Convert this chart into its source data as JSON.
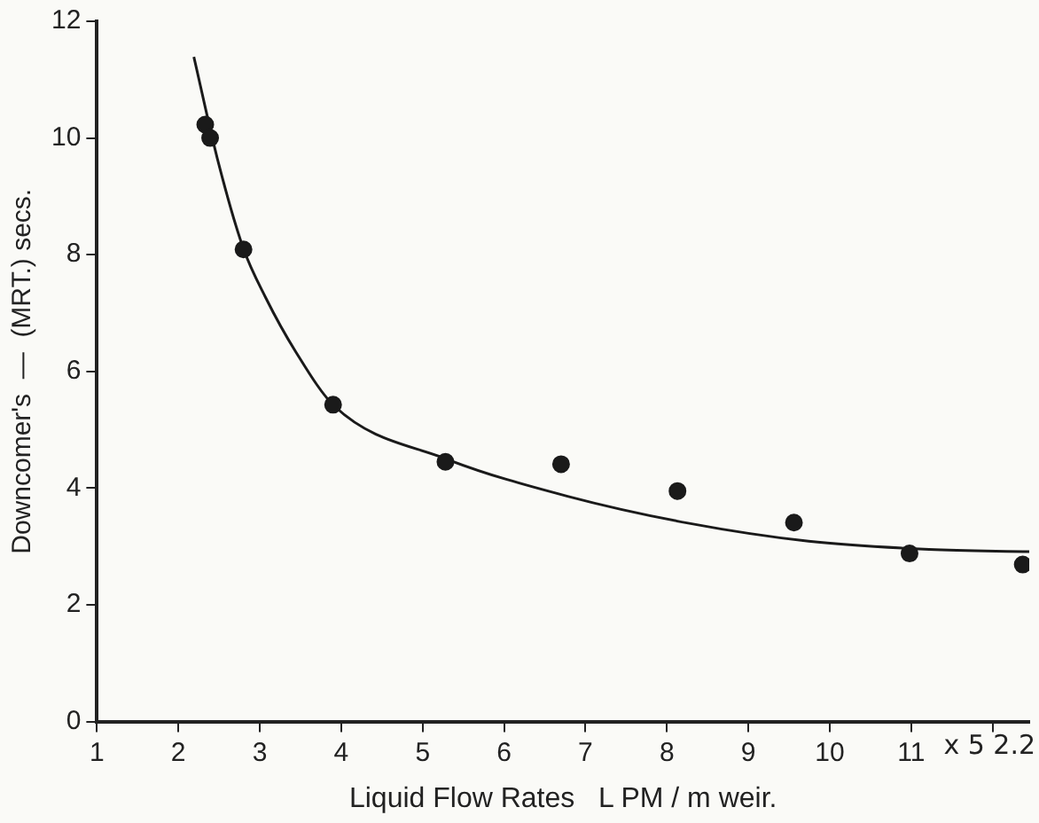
{
  "chart_data": {
    "type": "scatter",
    "xlabel": "Liquid Flow Rates   L PM / m weir.",
    "ylabel": "Downcomer's  —  (MRT.) secs.",
    "xlim": [
      1,
      12.45
    ],
    "xticks": [
      1,
      2,
      3,
      4,
      5,
      6,
      7,
      8,
      9,
      10,
      11,
      {
        "value": 12,
        "label": null
      }
    ],
    "ylim": [
      0,
      12
    ],
    "yticks": [
      0,
      2,
      4,
      6,
      8,
      10,
      12
    ],
    "annotations": [
      "x 5 2.2"
    ],
    "grid": false,
    "legend": false,
    "series": [
      {
        "color": "#1a1a1a",
        "marker": "circle",
        "x": [
          2.33,
          2.39,
          2.8,
          3.9,
          5.28,
          6.7,
          8.13,
          9.56,
          10.98,
          12.37
        ],
        "values": [
          10.23,
          10.0,
          8.09,
          5.43,
          4.45,
          4.41,
          3.95,
          3.41,
          2.88,
          2.69
        ]
      },
      {
        "type": "line",
        "color": "#1a1a1a",
        "marker": "none",
        "x": [
          2.19,
          2.48,
          2.8,
          3.07,
          3.44,
          3.92,
          5.29,
          6.78,
          8.26,
          9.74,
          11.22,
          12.45
        ],
        "values": [
          11.39,
          9.64,
          8.1,
          7.27,
          6.34,
          5.4,
          4.5,
          3.86,
          3.4,
          3.09,
          2.95,
          2.91
        ]
      }
    ]
  }
}
